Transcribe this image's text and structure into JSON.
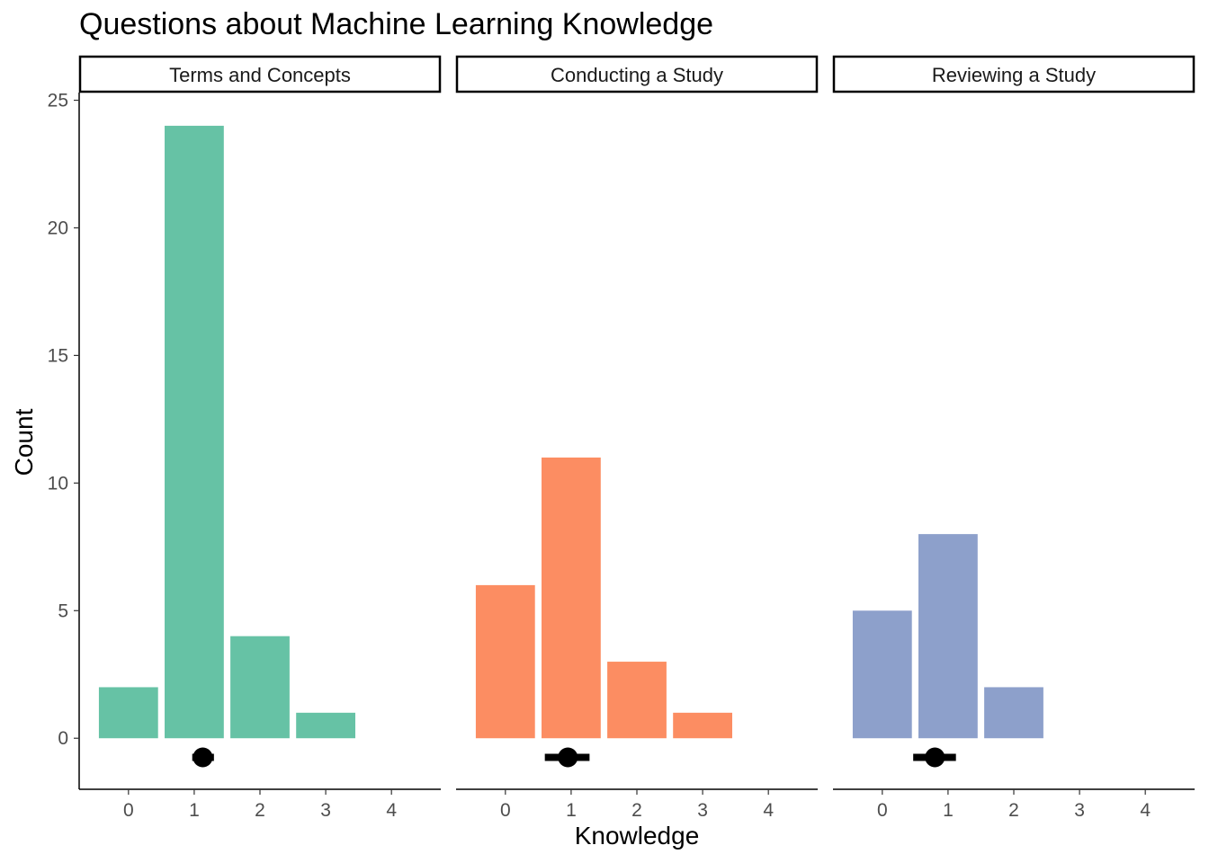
{
  "chart_data": {
    "type": "bar",
    "title": "Questions about Machine Learning Knowledge",
    "xlabel": "Knowledge",
    "ylabel": "Count",
    "x_ticks": [
      0,
      1,
      2,
      3,
      4
    ],
    "y_ticks": [
      0,
      5,
      10,
      15,
      20,
      25
    ],
    "xlim": [
      -0.75,
      4.75
    ],
    "ylim": [
      -2,
      25.3
    ],
    "grid": false,
    "legend": "none",
    "panels": [
      {
        "name": "Terms and Concepts",
        "color": "#66c2a5",
        "categories": [
          0,
          1,
          2,
          3
        ],
        "values": [
          2,
          24,
          4,
          1
        ],
        "summary": {
          "point": 1.13,
          "low": 0.97,
          "high": 1.3,
          "y": -0.75
        }
      },
      {
        "name": "Conducting a Study",
        "color": "#fc8d62",
        "categories": [
          0,
          1,
          2,
          3
        ],
        "values": [
          6,
          11,
          3,
          1
        ],
        "summary": {
          "point": 0.95,
          "low": 0.6,
          "high": 1.28,
          "y": -0.75
        }
      },
      {
        "name": "Reviewing a Study",
        "color": "#8da0cb",
        "categories": [
          0,
          1,
          2
        ],
        "values": [
          5,
          8,
          2
        ],
        "summary": {
          "point": 0.8,
          "low": 0.47,
          "high": 1.12,
          "y": -0.75
        }
      }
    ]
  }
}
